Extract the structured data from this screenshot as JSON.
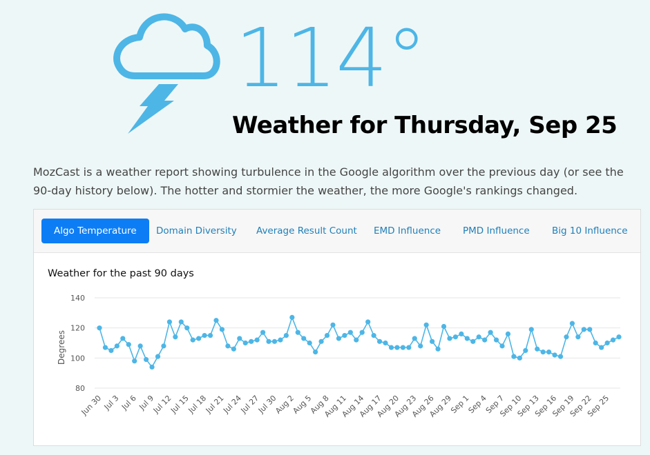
{
  "hero": {
    "icon": "cloud-lightning-icon",
    "temperature": "114°",
    "headline": "Weather for Thursday, Sep 25",
    "accent_color": "#4db6e6"
  },
  "intro": "MozCast is a weather report showing turbulence in the Google algorithm over the previous day (or see the 90-day history below). The hotter and stormier the weather, the more Google's rankings changed.",
  "tabs": [
    {
      "label": "Algo Temperature",
      "active": true
    },
    {
      "label": "Domain Diversity",
      "active": false
    },
    {
      "label": "Average Result Count",
      "active": false
    },
    {
      "label": "EMD Influence",
      "active": false
    },
    {
      "label": "PMD Influence",
      "active": false
    },
    {
      "label": "Big 10 Influence",
      "active": false
    }
  ],
  "chart_data": {
    "type": "line",
    "title": "Weather for the past 90 days",
    "ylabel": "Degrees",
    "xlabel": "",
    "ylim": [
      80,
      140
    ],
    "yticks": [
      80,
      100,
      120,
      140
    ],
    "grid": true,
    "color": "#4db6e6",
    "x_start": "Jun 30",
    "x_tick_labels": [
      "Jun 30",
      "Jul 3",
      "Jul 6",
      "Jul 9",
      "Jul 12",
      "Jul 15",
      "Jul 18",
      "Jul 21",
      "Jul 24",
      "Jul 27",
      "Jul 30",
      "Aug 2",
      "Aug 5",
      "Aug 8",
      "Aug 11",
      "Aug 14",
      "Aug 17",
      "Aug 20",
      "Aug 23",
      "Aug 26",
      "Aug 29",
      "Sep 1",
      "Sep 4",
      "Sep 7",
      "Sep 10",
      "Sep 13",
      "Sep 16",
      "Sep 19",
      "Sep 22",
      "Sep 25"
    ],
    "values": [
      120,
      107,
      105,
      108,
      113,
      109,
      98,
      108,
      99,
      94,
      101,
      108,
      124,
      114,
      124,
      120,
      112,
      113,
      115,
      115,
      125,
      119,
      108,
      106,
      113,
      110,
      111,
      112,
      117,
      111,
      111,
      112,
      115,
      127,
      117,
      113,
      110,
      104,
      111,
      115,
      122,
      113,
      115,
      117,
      112,
      117,
      124,
      115,
      111,
      110,
      107,
      107,
      107,
      107,
      113,
      108,
      122,
      111,
      106,
      121,
      113,
      114,
      116,
      113,
      111,
      114,
      112,
      117,
      112,
      108,
      116,
      101,
      100,
      105,
      119,
      106,
      104,
      104,
      102,
      101,
      114,
      123,
      114,
      119,
      119,
      110,
      107,
      110,
      112,
      114
    ]
  }
}
